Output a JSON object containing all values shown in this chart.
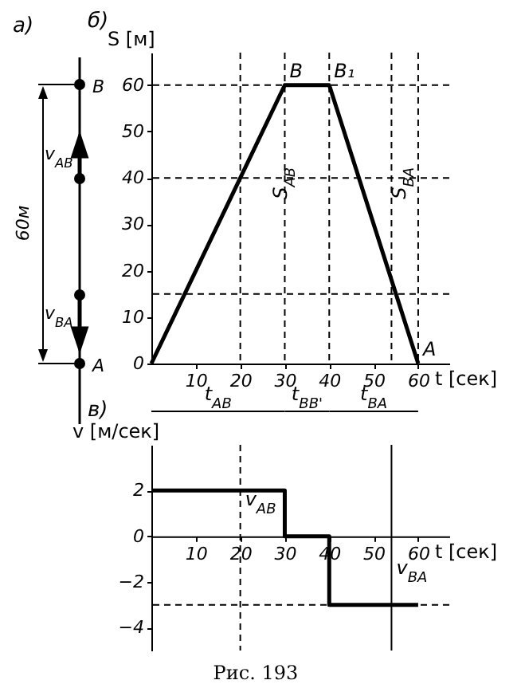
{
  "chart_data": [
    {
      "type": "other",
      "title": "а)",
      "annotations": [
        "B",
        "A",
        "v$_{AB}$",
        "v$_{BA}$",
        "60м"
      ]
    },
    {
      "type": "line",
      "title": "б)",
      "xlabel": "t [сек]",
      "ylabel": "S [м]",
      "x": [
        0,
        30,
        40,
        60
      ],
      "values": [
        0,
        60,
        60,
        0
      ],
      "color": "#000000",
      "xlim": [
        0,
        67
      ],
      "ylim": [
        0,
        67
      ],
      "xticks": [
        10,
        20,
        30,
        40,
        50,
        60
      ],
      "yticks": [
        0,
        10,
        20,
        30,
        40,
        50,
        60
      ],
      "ref_lines": [
        {
          "axis": "y",
          "value": 60,
          "line_style": "dashed"
        },
        {
          "axis": "y",
          "value": 40,
          "line_style": "dashed"
        },
        {
          "axis": "y",
          "value": 15,
          "line_style": "dashed"
        },
        {
          "axis": "x",
          "value": 20,
          "line_style": "dashed"
        },
        {
          "axis": "x",
          "value": 30,
          "line_style": "dashed"
        },
        {
          "axis": "x",
          "value": 40,
          "line_style": "dashed"
        },
        {
          "axis": "x",
          "value": 54,
          "line_style": "dashed"
        },
        {
          "axis": "x",
          "value": 60,
          "line_style": "dashed"
        }
      ],
      "annotations": [
        {
          "text": "B",
          "x": 30,
          "y": 60
        },
        {
          "text": "B₁",
          "x": 40,
          "y": 60
        },
        {
          "text": "A",
          "x": 60,
          "y": 0
        },
        "S$_{AB}$",
        "S$_{BA}$",
        "t$_{AB}$",
        "t$_{BB'}$",
        "t$_{BA}$"
      ]
    },
    {
      "type": "step",
      "title": "в)",
      "xlabel": "t [сек]",
      "ylabel": "v [м/сек]",
      "x": [
        0,
        30,
        40,
        60
      ],
      "values": [
        2,
        0,
        -3,
        -3
      ],
      "color": "#000000",
      "xlim": [
        0,
        67
      ],
      "ylim": [
        -5,
        4
      ],
      "xticks": [
        10,
        20,
        30,
        40,
        50,
        60
      ],
      "yticks": [
        2,
        0,
        -2,
        -4
      ],
      "ref_lines": [
        {
          "axis": "y",
          "value": -3,
          "line_style": "dashed"
        },
        {
          "axis": "x",
          "value": 20,
          "line_style": "dashed"
        },
        {
          "axis": "x",
          "value": 54,
          "line_style": "solid"
        }
      ],
      "annotations": [
        {
          "text": "v$_{AB}$",
          "x": 20,
          "y": 1
        },
        {
          "text": "v$_{BA}$",
          "x": 54,
          "y": -2
        },
        "Рис. 193"
      ]
    }
  ]
}
